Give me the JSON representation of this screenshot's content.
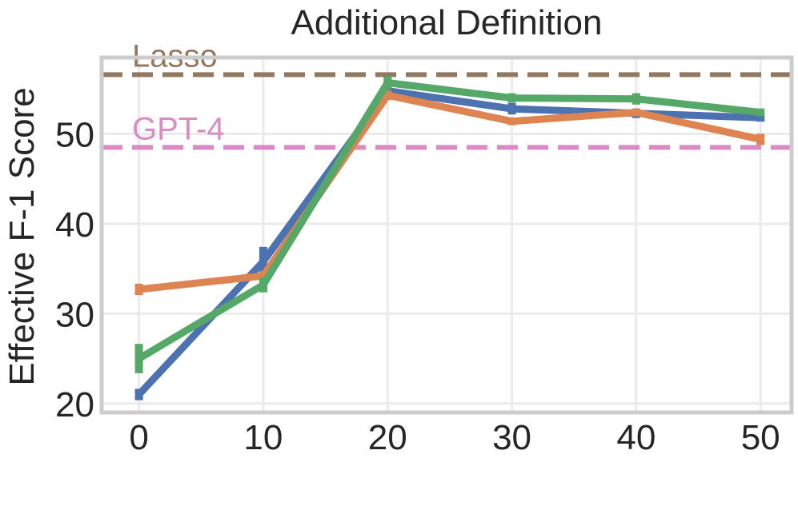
{
  "chart_data": {
    "type": "line",
    "title": "Additional Definition",
    "xlabel": "",
    "ylabel": "Effective F-1 Score",
    "x": [
      0,
      10,
      20,
      30,
      40,
      50
    ],
    "xticks": [
      "0",
      "10",
      "20",
      "30",
      "40",
      "50"
    ],
    "yticks": [
      "20",
      "30",
      "40",
      "50"
    ],
    "xlim": [
      -3,
      52.5
    ],
    "ylim": [
      19,
      58.5
    ],
    "grid": true,
    "series": [
      {
        "color": "#4C72B0",
        "values": [
          21.0,
          35.8,
          54.8,
          52.8,
          52.3,
          51.8
        ],
        "err": [
          0.5,
          1.5,
          0.4,
          0.5,
          0.4,
          0.3
        ]
      },
      {
        "color": "#DD8452",
        "values": [
          32.7,
          34.2,
          54.3,
          51.4,
          52.4,
          49.4
        ],
        "err": [
          0.5,
          0.4,
          0.4,
          0.3,
          0.3,
          0.5
        ]
      },
      {
        "color": "#55A868",
        "values": [
          25.0,
          33.2,
          55.7,
          54.0,
          53.9,
          52.4
        ],
        "err": [
          1.5,
          0.7,
          0.6,
          0.4,
          0.5,
          0.3
        ]
      }
    ],
    "reference_lines": [
      {
        "label": "Lasso",
        "value": 56.6,
        "color": "#937860"
      },
      {
        "label": "GPT-4",
        "value": 48.5,
        "color": "#DA8BC3"
      }
    ]
  }
}
